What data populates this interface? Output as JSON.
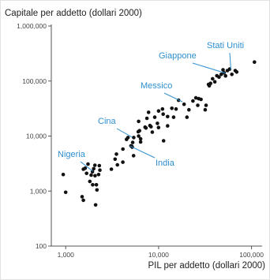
{
  "chart_data": {
    "type": "scatter",
    "title": "",
    "xlabel": "PIL per addetto (dollari 2000)",
    "ylabel": "Capitale per addetto (dollari 2000)",
    "x_scale": "log",
    "y_scale": "log",
    "xlim": [
      700,
      130000
    ],
    "ylim": [
      100,
      1000000
    ],
    "grid": false,
    "legend": "none",
    "x_ticks": [
      {
        "value": 1000,
        "label": "1,000"
      },
      {
        "value": 10000,
        "label": "10,000"
      },
      {
        "value": 100000,
        "label": "100,000"
      }
    ],
    "y_ticks": [
      {
        "value": 100,
        "label": "100"
      },
      {
        "value": 1000,
        "label": "1,000"
      },
      {
        "value": 10000,
        "label": "10,000"
      },
      {
        "value": 100000,
        "label": "100,000"
      },
      {
        "value": 1000000,
        "label": "1,000,000"
      }
    ],
    "annotations": [
      {
        "label": "Stati Uniti",
        "x": 60000,
        "y": 160000
      },
      {
        "label": "Giappone",
        "x": 52000,
        "y": 140000
      },
      {
        "label": "Messico",
        "x": 18000,
        "y": 42000
      },
      {
        "label": "Cina",
        "x": 5200,
        "y": 9500
      },
      {
        "label": "India",
        "x": 4900,
        "y": 6600
      },
      {
        "label": "Nigeria",
        "x": 1950,
        "y": 2300
      }
    ],
    "point_color": "#111111",
    "annotation_color": "#2e8fd0",
    "series": [
      {
        "points": [
          [
            940,
            2000
          ],
          [
            1000,
            950
          ],
          [
            1550,
            2500
          ],
          [
            1500,
            790
          ],
          [
            1550,
            680
          ],
          [
            1620,
            2600
          ],
          [
            1680,
            2100
          ],
          [
            1740,
            3100
          ],
          [
            1820,
            1500
          ],
          [
            1880,
            1950
          ],
          [
            1950,
            1300
          ],
          [
            1940,
            2250
          ],
          [
            2060,
            2950
          ],
          [
            2070,
            1900
          ],
          [
            2000,
            2550
          ],
          [
            2170,
            1050
          ],
          [
            2100,
            560
          ],
          [
            2140,
            1300
          ],
          [
            2330,
            2400
          ],
          [
            2300,
            2900
          ],
          [
            2260,
            2000
          ],
          [
            3100,
            2500
          ],
          [
            3400,
            3800
          ],
          [
            3520,
            4700
          ],
          [
            3600,
            3000
          ],
          [
            4120,
            3350
          ],
          [
            4130,
            5800
          ],
          [
            4520,
            8700
          ],
          [
            4680,
            9400
          ],
          [
            5040,
            6650
          ],
          [
            5150,
            6500
          ],
          [
            5200,
            6300
          ],
          [
            5260,
            7650
          ],
          [
            5400,
            9400
          ],
          [
            5380,
            4400
          ],
          [
            6040,
            12000
          ],
          [
            6100,
            10000
          ],
          [
            6090,
            18500
          ],
          [
            6230,
            12500
          ],
          [
            6400,
            8900
          ],
          [
            6400,
            7800
          ],
          [
            7160,
            14500
          ],
          [
            7310,
            14000
          ],
          [
            7480,
            21000
          ],
          [
            7800,
            27000
          ],
          [
            8060,
            15500
          ],
          [
            8280,
            14800
          ],
          [
            8550,
            11800
          ],
          [
            9080,
            22000
          ],
          [
            9700,
            17000
          ],
          [
            9980,
            14300
          ],
          [
            10000,
            28600
          ],
          [
            11000,
            31000
          ],
          [
            11200,
            25000
          ],
          [
            11300,
            8200
          ],
          [
            12500,
            15300
          ],
          [
            12500,
            22600
          ],
          [
            13900,
            32000
          ],
          [
            14500,
            22000
          ],
          [
            15400,
            31000
          ],
          [
            16400,
            44700
          ],
          [
            18800,
            37800
          ],
          [
            20200,
            22000
          ],
          [
            21200,
            30000
          ],
          [
            23400,
            43400
          ],
          [
            25200,
            49400
          ],
          [
            26400,
            36200
          ],
          [
            27000,
            47800
          ],
          [
            28600,
            46400
          ],
          [
            31700,
            30000
          ],
          [
            32400,
            36200
          ],
          [
            34400,
            87000
          ],
          [
            35100,
            82000
          ],
          [
            36200,
            90800
          ],
          [
            38100,
            110000
          ],
          [
            40300,
            97000
          ],
          [
            42400,
            125000
          ],
          [
            44700,
            118000
          ],
          [
            47300,
            132000
          ],
          [
            49400,
            160000
          ],
          [
            50600,
            141000
          ],
          [
            52500,
            124000
          ],
          [
            55000,
            155000
          ],
          [
            58200,
            165000
          ],
          [
            61500,
            132000
          ],
          [
            66900,
            155000
          ],
          [
            69300,
            146000
          ],
          [
            107500,
            221000
          ]
        ]
      }
    ]
  }
}
